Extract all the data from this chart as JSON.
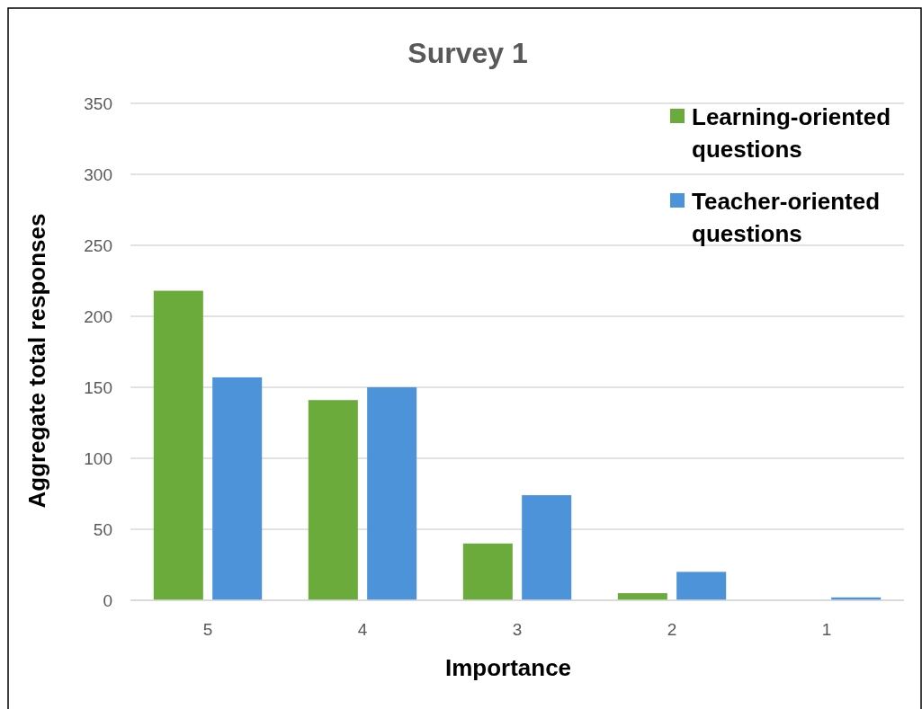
{
  "chart_data": {
    "type": "bar",
    "title": "Survey 1",
    "xlabel": "Importance",
    "ylabel": "Aggregate total responses",
    "categories": [
      "5",
      "4",
      "3",
      "2",
      "1"
    ],
    "series": [
      {
        "name": "Learning-oriented questions",
        "color": "#6aab3c",
        "values": [
          218,
          141,
          40,
          5,
          0
        ]
      },
      {
        "name": "Teacher-oriented questions",
        "color": "#4d93d9",
        "values": [
          157,
          150,
          74,
          20,
          2
        ]
      }
    ],
    "ylim": [
      0,
      350
    ],
    "yticks": [
      0,
      50,
      100,
      150,
      200,
      250,
      300,
      350
    ],
    "grid": "y",
    "legend": "top right"
  }
}
